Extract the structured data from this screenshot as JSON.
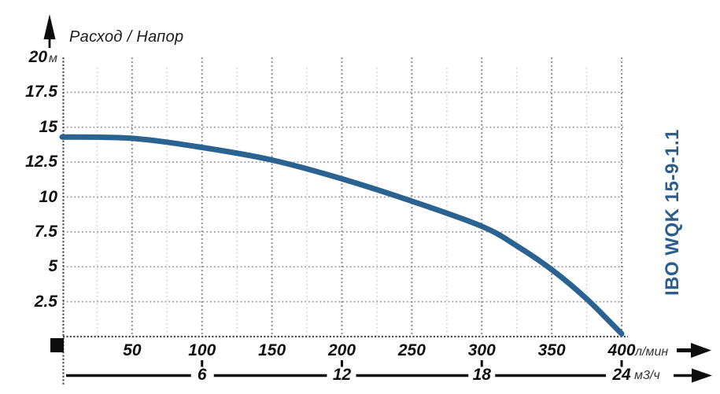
{
  "header": {
    "title": "Расход / Напор"
  },
  "product_label": "IBO WQK 15-9-1.1",
  "colors": {
    "curve": "#2a6391",
    "brand_text": "#2b5e8e",
    "grid_major": "#909090",
    "grid_minor": "#d2d2d2",
    "grid_horizontal": "#9a9a9a",
    "grid_axis": "#4d4d4d",
    "ink": "#0d0d0d"
  },
  "icons": {
    "y_axis_arrow": "up-arrow-icon",
    "x_axis_primary_arrow": "right-arrow-icon",
    "x_axis_secondary_arrow": "right-arrow-icon",
    "origin_marker": "origin-square"
  },
  "chart_data": {
    "type": "line",
    "title": "Расход / Напор",
    "grid": "dotted",
    "legend": "none",
    "y_axis": {
      "label_unit": "м",
      "ticks_top_to_bottom": [
        20,
        17.5,
        15,
        12.5,
        10,
        7.5,
        5,
        2.5
      ],
      "range": [
        0,
        20
      ],
      "gridlines_at": [
        2.5,
        5,
        7.5,
        10,
        12.5,
        15,
        17.5
      ]
    },
    "x_axis_primary": {
      "unit": "л/мин",
      "ticks": [
        50,
        100,
        150,
        200,
        250,
        300,
        350,
        400
      ],
      "range": [
        0,
        400
      ],
      "major_grid_step": 50,
      "minor_grid_step": 25
    },
    "x_axis_secondary": {
      "unit": "м3/ч",
      "ticks": [
        6,
        12,
        18,
        24
      ],
      "range": [
        0,
        24
      ]
    },
    "series": [
      {
        "name": "IBO WQK 15-9-1.1",
        "points_lpm_m": [
          [
            0,
            14.3
          ],
          [
            50,
            14.2
          ],
          [
            100,
            13.55
          ],
          [
            150,
            12.65
          ],
          [
            200,
            11.3
          ],
          [
            250,
            9.7
          ],
          [
            300,
            7.9
          ],
          [
            325,
            6.5
          ],
          [
            350,
            4.8
          ],
          [
            375,
            2.7
          ],
          [
            400,
            0.2
          ]
        ]
      }
    ]
  }
}
